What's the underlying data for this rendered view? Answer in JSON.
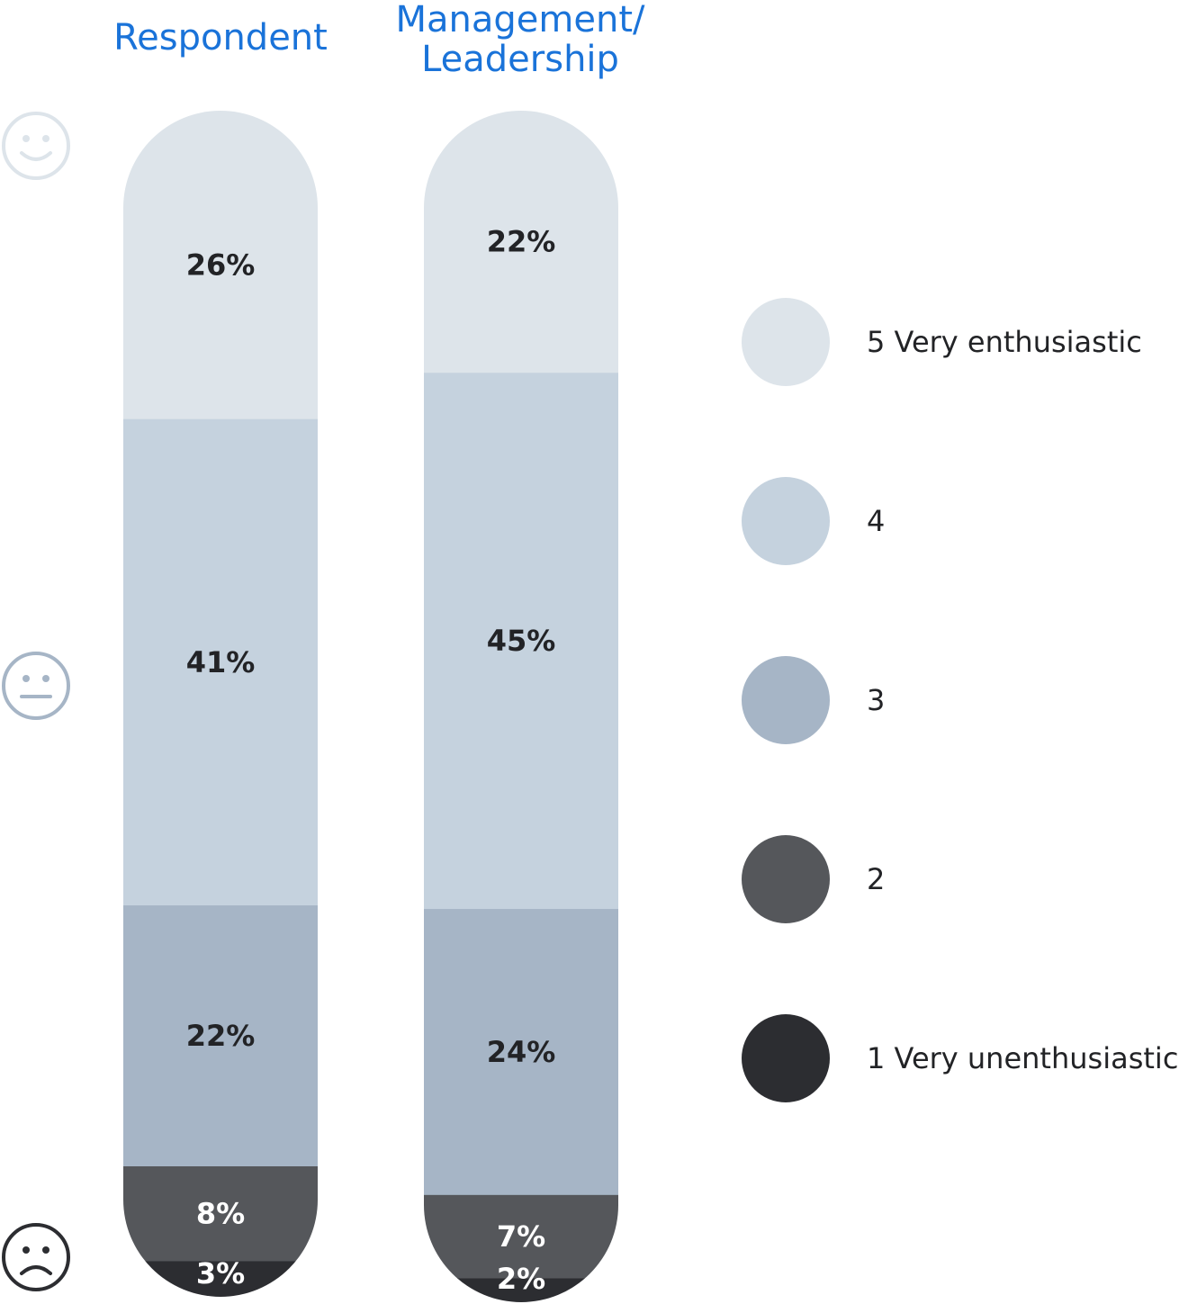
{
  "chart_data": {
    "type": "bar",
    "stacked": true,
    "categories": [
      "Respondent",
      "Management/ Leadership"
    ],
    "series": [
      {
        "name": "5 Very enthusiastic",
        "values": [
          26,
          22
        ],
        "color": "#dde4ea",
        "text_color": "#222326"
      },
      {
        "name": "4",
        "values": [
          41,
          45
        ],
        "color": "#c5d2de",
        "text_color": "#222326"
      },
      {
        "name": "3",
        "values": [
          22,
          24
        ],
        "color": "#a6b5c6",
        "text_color": "#222326"
      },
      {
        "name": "2",
        "values": [
          8,
          7
        ],
        "color": "#55575b",
        "text_color": "#ffffff"
      },
      {
        "name": "1 Very unenthusiastic",
        "values": [
          3,
          2
        ],
        "color": "#2c2d31",
        "text_color": "#ffffff"
      }
    ],
    "value_suffix": "%",
    "legend_position": "right"
  },
  "titles": {
    "respondent": "Respondent",
    "management": "Management/\nLeadership"
  },
  "icons": {
    "top": "smiling-face-icon",
    "middle": "neutral-face-icon",
    "bottom": "frowning-face-icon"
  }
}
